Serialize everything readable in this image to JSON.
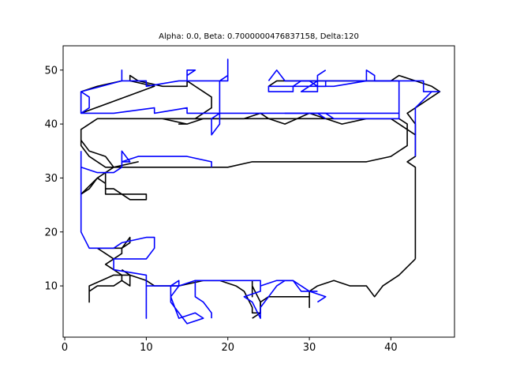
{
  "chart_data": {
    "type": "line",
    "title": "Alpha: 0.0, Beta: 0.7000000476837158, Delta:120",
    "xlabel": "",
    "ylabel": "",
    "xlim": [
      -0.2,
      47.8
    ],
    "ylim": [
      0.5,
      54.5
    ],
    "xticks": [
      0,
      10,
      20,
      30,
      40
    ],
    "yticks": [
      10,
      20,
      30,
      40,
      50
    ],
    "grid": false,
    "series": [
      {
        "color": "#000000",
        "paths": [
          [
            [
              2,
              36
            ],
            [
              3,
              34
            ],
            [
              4,
              33
            ],
            [
              5,
              32
            ],
            [
              6,
              32
            ],
            [
              9,
              33
            ],
            [
              6,
              32
            ],
            [
              20,
              32
            ],
            [
              23,
              33
            ],
            [
              37,
              33
            ],
            [
              40,
              34
            ],
            [
              42,
              36
            ],
            [
              42,
              40
            ],
            [
              41,
              41
            ],
            [
              39,
              41
            ],
            [
              37,
              41
            ],
            [
              34,
              40
            ],
            [
              30,
              42
            ],
            [
              27,
              40
            ],
            [
              25,
              41
            ],
            [
              24,
              42
            ],
            [
              22,
              41
            ],
            [
              20,
              41
            ],
            [
              15,
              41
            ],
            [
              12,
              41
            ],
            [
              4,
              41
            ],
            [
              2,
              39
            ],
            [
              2,
              36
            ],
            [
              2,
              37
            ],
            [
              3,
              35
            ],
            [
              5,
              34
            ],
            [
              6,
              32
            ],
            [
              5,
              31
            ],
            [
              5,
              29
            ],
            [
              4,
              30
            ],
            [
              2,
              27
            ],
            [
              3,
              28
            ],
            [
              4,
              30
            ],
            [
              5,
              31
            ]
          ],
          [
            [
              5,
              29
            ],
            [
              5,
              27
            ],
            [
              7,
              27
            ],
            [
              8,
              26
            ],
            [
              10,
              26
            ],
            [
              10,
              27
            ],
            [
              7,
              27
            ],
            [
              6,
              28
            ],
            [
              5,
              28
            ]
          ],
          [
            [
              43,
              15
            ],
            [
              43,
              32
            ],
            [
              42,
              33
            ],
            [
              43,
              34
            ],
            [
              43,
              38
            ],
            [
              41,
              40
            ],
            [
              40,
              41
            ],
            [
              28,
              41
            ],
            [
              24,
              41
            ],
            [
              20,
              41
            ],
            [
              16,
              41
            ],
            [
              13,
              41
            ]
          ],
          [
            [
              2,
              42
            ],
            [
              11,
              47
            ],
            [
              8,
              48
            ],
            [
              8,
              49
            ],
            [
              9,
              48
            ],
            [
              12,
              47
            ],
            [
              15,
              47
            ],
            [
              15,
              48
            ],
            [
              17,
              46
            ],
            [
              18,
              45
            ],
            [
              18,
              43
            ],
            [
              17,
              42
            ],
            [
              16,
              41
            ],
            [
              17,
              41
            ],
            [
              15,
              40
            ],
            [
              14,
              40
            ],
            [
              15,
              40
            ],
            [
              12,
              41
            ]
          ],
          [
            [
              2,
              42
            ],
            [
              2,
              46
            ],
            [
              4,
              47
            ],
            [
              7,
              48
            ]
          ],
          [
            [
              25,
              47
            ],
            [
              26,
              48
            ],
            [
              29,
              48
            ],
            [
              40,
              48
            ],
            [
              41,
              49
            ],
            [
              43,
              48
            ],
            [
              45,
              47
            ],
            [
              46,
              46
            ],
            [
              44,
              44
            ],
            [
              42,
              42
            ],
            [
              43,
              40
            ],
            [
              43,
              38
            ]
          ],
          [
            [
              43,
              15
            ],
            [
              41,
              12
            ],
            [
              39,
              10
            ],
            [
              38,
              8
            ],
            [
              37,
              10
            ],
            [
              35,
              10
            ],
            [
              33,
              11
            ],
            [
              31,
              10
            ],
            [
              30,
              9
            ],
            [
              30,
              6
            ],
            [
              30,
              8
            ],
            [
              25,
              8
            ],
            [
              24,
              7
            ],
            [
              24,
              5
            ],
            [
              23,
              5
            ],
            [
              23,
              6
            ],
            [
              22,
              9
            ],
            [
              21,
              10
            ],
            [
              19,
              11
            ],
            [
              17,
              11
            ],
            [
              14,
              10
            ],
            [
              11,
              10
            ],
            [
              10,
              11
            ],
            [
              8,
              12
            ],
            [
              7,
              12
            ],
            [
              6,
              13
            ],
            [
              5,
              14
            ],
            [
              6,
              15
            ],
            [
              7,
              16
            ],
            [
              7,
              17
            ],
            [
              8,
              19
            ],
            [
              8,
              18
            ],
            [
              7,
              17
            ],
            [
              4,
              17
            ],
            [
              5,
              16
            ],
            [
              6,
              15
            ]
          ],
          [
            [
              7,
              13
            ],
            [
              8,
              12
            ],
            [
              8,
              10
            ],
            [
              7,
              11
            ],
            [
              7,
              12
            ],
            [
              6,
              12
            ],
            [
              3,
              10
            ],
            [
              3,
              7
            ],
            [
              3,
              9
            ],
            [
              4,
              10
            ],
            [
              6,
              10
            ],
            [
              7,
              11
            ]
          ],
          [
            [
              23,
              11
            ],
            [
              23,
              8
            ],
            [
              23,
              10
            ],
            [
              24,
              7
            ],
            [
              24,
              5
            ],
            [
              23,
              4
            ]
          ]
        ]
      },
      {
        "color": "#0000ff",
        "paths": [
          [
            [
              2,
              46
            ],
            [
              3,
              45
            ],
            [
              3,
              43
            ],
            [
              2,
              42
            ],
            [
              2,
              46
            ],
            [
              7,
              48
            ],
            [
              7,
              50
            ],
            [
              7,
              48
            ],
            [
              10,
              48
            ],
            [
              10,
              47
            ],
            [
              14,
              48
            ],
            [
              15,
              48
            ],
            [
              15,
              49
            ],
            [
              16,
              50
            ],
            [
              15,
              50
            ],
            [
              15,
              48
            ],
            [
              20,
              48
            ],
            [
              20,
              52
            ],
            [
              20,
              49
            ],
            [
              19,
              48
            ],
            [
              19,
              46
            ],
            [
              19,
              42
            ],
            [
              18,
              41
            ],
            [
              18,
              38
            ],
            [
              19,
              40
            ],
            [
              19,
              46
            ],
            [
              19,
              48
            ]
          ],
          [
            [
              2,
              42
            ],
            [
              6,
              42
            ],
            [
              11,
              43
            ],
            [
              11,
              42
            ],
            [
              15,
              43
            ],
            [
              15,
              42
            ],
            [
              41,
              42
            ],
            [
              41,
              48
            ],
            [
              29,
              48
            ],
            [
              28,
              47
            ],
            [
              25,
              47
            ],
            [
              25,
              46
            ],
            [
              28,
              46
            ],
            [
              28,
              47
            ],
            [
              31,
              47
            ],
            [
              32,
              47
            ],
            [
              32,
              48
            ],
            [
              33,
              48
            ],
            [
              31,
              48
            ],
            [
              31,
              46
            ],
            [
              29,
              46
            ],
            [
              31,
              48
            ],
            [
              31,
              49
            ],
            [
              32,
              50
            ]
          ],
          [
            [
              45,
              46
            ],
            [
              43,
              43
            ],
            [
              43,
              42
            ],
            [
              43,
              34
            ]
          ],
          [
            [
              25,
              48
            ],
            [
              26,
              50
            ],
            [
              27,
              48
            ],
            [
              30,
              48
            ],
            [
              31,
              47
            ],
            [
              33,
              47
            ],
            [
              37,
              48
            ],
            [
              37,
              50
            ],
            [
              38,
              49
            ],
            [
              38,
              48
            ],
            [
              44,
              48
            ],
            [
              44,
              46
            ],
            [
              46,
              46
            ]
          ],
          [
            [
              32,
              41
            ],
            [
              31,
              42
            ],
            [
              27,
              42
            ],
            [
              32,
              42
            ],
            [
              33,
              41
            ],
            [
              41,
              41
            ],
            [
              41,
              42
            ]
          ],
          [
            [
              2,
              35
            ],
            [
              2,
              32
            ],
            [
              4,
              31
            ],
            [
              6,
              31
            ],
            [
              7,
              32
            ],
            [
              7,
              33
            ],
            [
              8,
              33
            ],
            [
              7,
              35
            ],
            [
              7,
              33
            ],
            [
              9,
              34
            ],
            [
              15,
              34
            ],
            [
              18,
              33
            ],
            [
              18,
              32
            ]
          ],
          [
            [
              2,
              32
            ],
            [
              2,
              20
            ],
            [
              3,
              17
            ],
            [
              6,
              17
            ],
            [
              7,
              18
            ],
            [
              10,
              19
            ],
            [
              11,
              19
            ],
            [
              11,
              17
            ],
            [
              10,
              15
            ],
            [
              6,
              15
            ],
            [
              6,
              13
            ],
            [
              10,
              12
            ],
            [
              10,
              4
            ],
            [
              10,
              10
            ],
            [
              14,
              10
            ],
            [
              14,
              11
            ],
            [
              13,
              10
            ],
            [
              13,
              8
            ],
            [
              14,
              4
            ],
            [
              16,
              5
            ],
            [
              17,
              4
            ],
            [
              15,
              3
            ],
            [
              13,
              7
            ],
            [
              13,
              8
            ],
            [
              14,
              10
            ],
            [
              16,
              11
            ],
            [
              17,
              11
            ],
            [
              20,
              11
            ],
            [
              24,
              11
            ],
            [
              24,
              9
            ],
            [
              22,
              8
            ],
            [
              23,
              7
            ],
            [
              24,
              4
            ],
            [
              24,
              6
            ],
            [
              25,
              8
            ],
            [
              26,
              10
            ],
            [
              27,
              11
            ],
            [
              28,
              11
            ],
            [
              29,
              9
            ],
            [
              30,
              9
            ],
            [
              32,
              8
            ],
            [
              31,
              7
            ]
          ],
          [
            [
              16,
              11
            ],
            [
              16,
              8
            ],
            [
              17,
              7
            ],
            [
              18,
              5
            ],
            [
              18,
              4
            ]
          ],
          [
            [
              24,
              10
            ],
            [
              26,
              11
            ],
            [
              28,
              11
            ],
            [
              29,
              10
            ],
            [
              30,
              9
            ],
            [
              31,
              9
            ]
          ]
        ]
      }
    ]
  }
}
